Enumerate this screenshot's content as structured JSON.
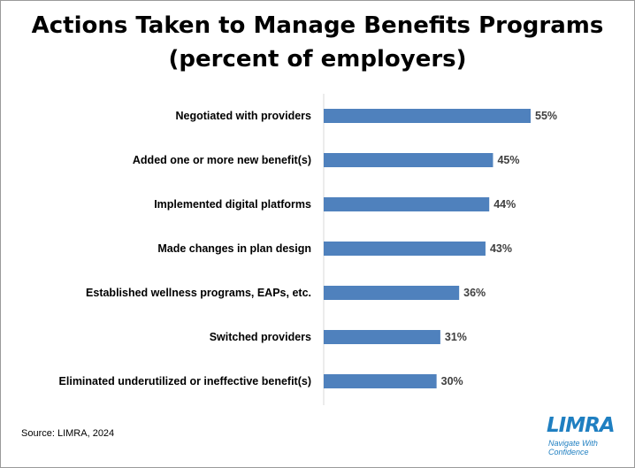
{
  "chart_data": {
    "type": "bar",
    "orientation": "horizontal",
    "title_line1": "Actions Taken to Manage Benefits Programs",
    "title_line2": "(percent of employers)",
    "categories": [
      "Negotiated with providers",
      "Added one or more new benefit(s)",
      "Implemented digital platforms",
      "Made changes in plan design",
      "Established wellness programs, EAPs, etc.",
      "Switched providers",
      "Eliminated underutilized or ineffective benefit(s)"
    ],
    "values": [
      55,
      45,
      44,
      43,
      36,
      31,
      30
    ],
    "data_labels": [
      "55%",
      "45%",
      "44%",
      "43%",
      "36%",
      "31%",
      "30%"
    ],
    "xlim": [
      0,
      100
    ],
    "grid": false,
    "bar_color": "#4f81bd"
  },
  "footer": {
    "source": "Source: LIMRA, 2024"
  },
  "logo": {
    "name": "LIMRA",
    "tagline": "Navigate With Confidence",
    "color": "#1f7fc1"
  }
}
